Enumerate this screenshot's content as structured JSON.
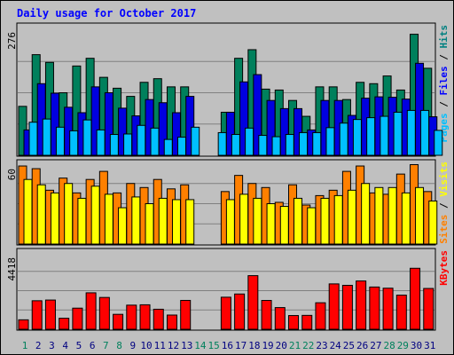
{
  "chart_data": {
    "type": "bar",
    "title": "Daily usage for October 2017",
    "days": [
      "1",
      "2",
      "3",
      "4",
      "5",
      "6",
      "7",
      "8",
      "9",
      "10",
      "11",
      "12",
      "13",
      "14",
      "15",
      "16",
      "17",
      "18",
      "19",
      "20",
      "21",
      "22",
      "23",
      "24",
      "25",
      "26",
      "27",
      "28",
      "29",
      "30",
      "31"
    ],
    "weekend_days": [
      "1",
      "7",
      "8",
      "14",
      "15",
      "21",
      "22",
      "28",
      "29"
    ],
    "panels": [
      {
        "id": "hits",
        "ymax_label": "276",
        "ymax": 276,
        "axis_label_parts": [
          {
            "text": "Pages",
            "color": "#00c0ff"
          },
          {
            "text": " / ",
            "color": "#000000"
          },
          {
            "text": "Files",
            "color": "#0000ff"
          },
          {
            "text": " / ",
            "color": "#000000"
          },
          {
            "text": "Hits",
            "color": "#008080"
          }
        ],
        "series": [
          {
            "name": "Hits",
            "color": "#00805c",
            "values": [
              108,
              222,
              205,
              138,
              197,
              214,
              172,
              148,
              130,
              161,
              169,
              151,
              151,
              0,
              0,
              95,
              214,
              233,
              146,
              144,
              121,
              86,
              151,
              151,
              123,
              161,
              158,
              175,
              144,
              267,
              192
            ]
          },
          {
            "name": "Files",
            "color": "#0000e0",
            "values": [
              56,
              158,
              137,
              106,
              94,
              151,
              138,
              104,
              87,
              123,
              116,
              94,
              130,
              0,
              0,
              95,
              162,
              178,
              121,
              103,
              103,
              56,
              121,
              121,
              88,
              126,
              129,
              128,
              124,
              203,
              85
            ]
          },
          {
            "name": "Pages",
            "color": "#00c0ff",
            "values": [
              73,
              80,
              62,
              54,
              78,
              56,
              46,
              47,
              66,
              60,
              35,
              40,
              62,
              0,
              50,
              46,
              60,
              44,
              41,
              46,
              50,
              50,
              61,
              71,
              79,
              83,
              86,
              95,
              99,
              99,
              55
            ]
          }
        ]
      },
      {
        "id": "visits",
        "ymax_label": "60",
        "ymax": 60,
        "axis_label_parts": [
          {
            "text": "Sites",
            "color": "#ff8000"
          },
          {
            "text": " / ",
            "color": "#000000"
          },
          {
            "text": "Visits",
            "color": "#ffff00"
          }
        ],
        "series": [
          {
            "name": "Visits",
            "color": "#ff8000",
            "values": [
              58,
              56,
              40,
              49,
              38,
              48,
              54,
              38,
              45,
              42,
              48,
              41,
              44,
              0,
              0,
              39,
              51,
              45,
              42,
              31,
              44,
              29,
              36,
              40,
              54,
              58,
              38,
              37,
              52,
              59,
              39
            ]
          },
          {
            "name": "Sites",
            "color": "#ffff00",
            "values": [
              48,
              44,
              38,
              45,
              34,
              43,
              37,
              27,
              35,
              30,
              34,
              33,
              33,
              0,
              0,
              33,
              37,
              34,
              30,
              28,
              34,
              27,
              34,
              36,
              40,
              45,
              42,
              42,
              38,
              42,
              32
            ]
          }
        ]
      },
      {
        "id": "kbytes",
        "ymax_label": "4418",
        "ymax": 4418,
        "axis_label_parts": [
          {
            "text": "KBytes",
            "color": "#ff0000"
          }
        ],
        "series": [
          {
            "name": "KBytes",
            "color": "#ff0000",
            "values": [
              541,
              1632,
              1672,
              630,
              1208,
              2086,
              1820,
              854,
              1380,
              1400,
              1146,
              813,
              1652,
              0,
              0,
              1834,
              2018,
              3068,
              1650,
              1240,
              785,
              795,
              1517,
              2596,
              2514,
              2763,
              2417,
              2350,
              1953,
              3490,
              2334
            ]
          }
        ]
      }
    ]
  }
}
